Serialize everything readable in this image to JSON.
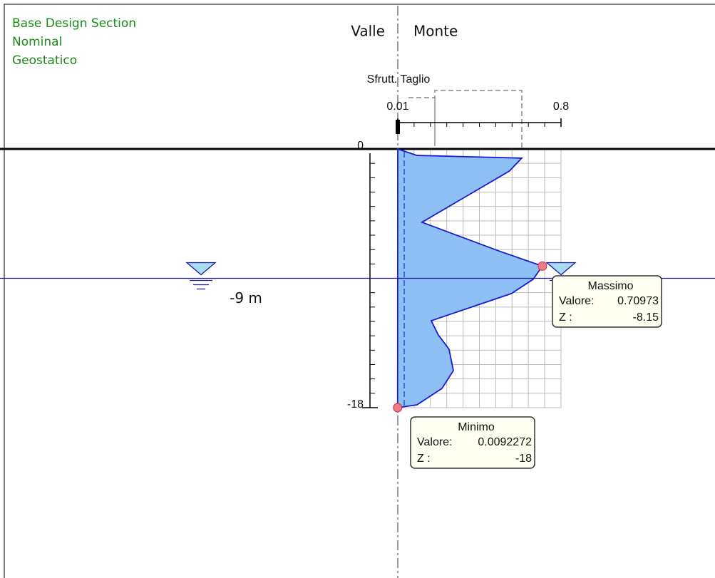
{
  "header": {
    "lines": [
      "Base Design Section",
      "Nominal",
      "Geostatico"
    ]
  },
  "sides": {
    "left": "Valle",
    "right": "Monte"
  },
  "plot": {
    "title": "Sfrutt. Taglio",
    "xlim": [
      0.01,
      0.8
    ],
    "xticks": [
      0.01,
      0.8
    ],
    "zlim": [
      -18,
      0
    ],
    "zticks": [
      0,
      -18
    ],
    "profile": {
      "z": [
        0,
        -0.45,
        -0.64,
        -1.54,
        -5.1,
        -7.1,
        -8.15,
        -9.07,
        -10.06,
        -11.95,
        -12.94,
        -13.93,
        -15.42,
        -16.66,
        -17.8,
        -18
      ],
      "values": [
        0.01,
        0.103,
        0.61,
        0.55,
        0.127,
        0.5,
        0.70973,
        0.665,
        0.56,
        0.172,
        0.206,
        0.258,
        0.279,
        0.224,
        0.103,
        0.0092272
      ]
    },
    "max_index": 6,
    "min_index": 15
  },
  "water": {
    "z": -9,
    "left_label": "-9 m",
    "right_label": "-9 m"
  },
  "tooltip_max": {
    "title": "Massimo",
    "value_label": "Valore:",
    "value": "0.70973",
    "z_label": "Z :",
    "z": "-8.15"
  },
  "tooltip_min": {
    "title": "Minimo",
    "value_label": "Valore:",
    "value": "0.0092272",
    "z_label": "Z :",
    "z": "-18"
  }
}
